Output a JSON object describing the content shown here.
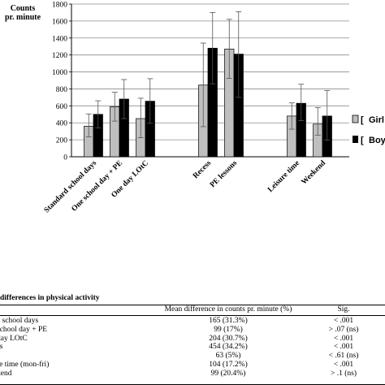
{
  "chart_data": {
    "type": "bar",
    "ylabel_lines": [
      "Counts",
      "pr. minute"
    ],
    "ylim": [
      0,
      1800
    ],
    "yticks": [
      0,
      200,
      400,
      600,
      800,
      1000,
      1200,
      1400,
      1600,
      1800
    ],
    "categories": [
      "Standard school days",
      "One school day + PE",
      "One day LOtC",
      "Recess",
      "PE lessons",
      "Leisure time",
      "Weekend"
    ],
    "groups": [
      [
        0,
        1,
        2
      ],
      [
        3,
        4
      ],
      [
        5,
        6
      ]
    ],
    "series": [
      {
        "name": "Girls",
        "color": "#bfbfbf",
        "values": [
          360,
          590,
          450,
          845,
          1270,
          480,
          385
        ],
        "error_low": [
          235,
          420,
          225,
          355,
          925,
          325,
          255
        ],
        "error_high": [
          505,
          760,
          690,
          1340,
          1620,
          635,
          580
        ]
      },
      {
        "name": "Boys",
        "color": "#000000",
        "values": [
          500,
          680,
          655,
          1280,
          1210,
          630,
          480
        ],
        "error_low": [
          340,
          450,
          395,
          860,
          700,
          425,
          195
        ],
        "error_high": [
          660,
          910,
          920,
          1700,
          1710,
          855,
          780
        ]
      }
    ],
    "grid": "horizontal",
    "legend_position": "right",
    "legend_labels": [
      "Girl",
      "Boy"
    ]
  },
  "table": {
    "title": "differences in physical activity",
    "headers": {
      "mean": "Mean difference in counts pr. minute (%)",
      "sig": "Sig."
    },
    "rows": [
      {
        "label": "e school days",
        "mean": "165 (31.3%)",
        "sig": "< .001"
      },
      {
        "label": "school day + PE",
        "mean": "99 (17%)",
        "sig": "> .07 (ns)"
      },
      {
        "label": "day LOtC",
        "mean": "204 (30.7%)",
        "sig": "< .001"
      },
      {
        "label": "ss",
        "mean": "454 (34.2%)",
        "sig": "< .001"
      },
      {
        "label": "",
        "mean": "63 (5%)",
        "sig": "< .61 (ns)"
      },
      {
        "label": "re time (mon-fri)",
        "mean": "104 (17.2%)",
        "sig": "< .001"
      },
      {
        "label": "kend",
        "mean": "99 (20.4%)",
        "sig": "> .1 (ns)"
      }
    ]
  }
}
